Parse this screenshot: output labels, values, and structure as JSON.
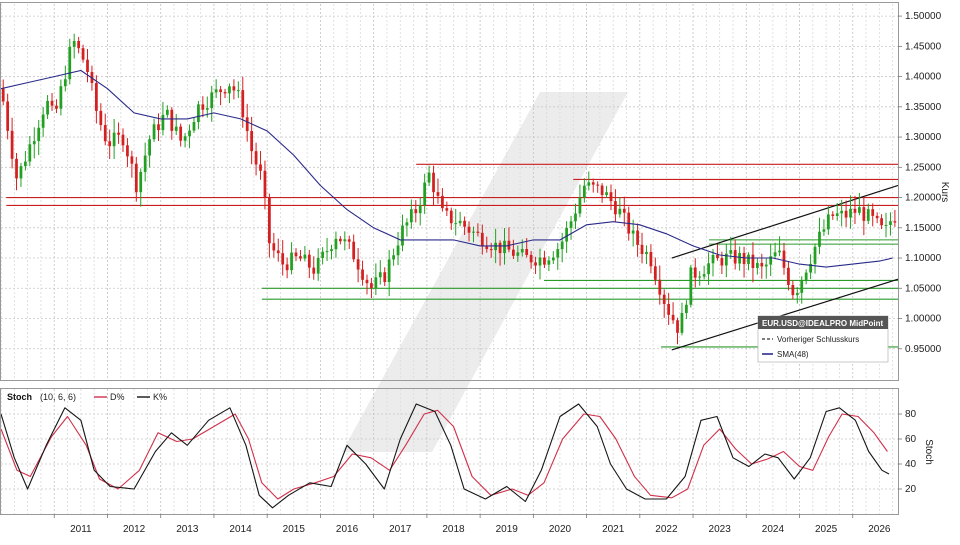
{
  "price_panel": {
    "y_axis_title": "Kurs",
    "legend": {
      "instrument": "EUR.USD@IDEALPRO MidPoint",
      "prev_close_label": "Vorheriger Schlusskurs",
      "sma_label": "SMA(48)"
    }
  },
  "stoch_panel": {
    "title": "Stoch",
    "params": "(10, 6, 6)",
    "d_label": "D%",
    "k_label": "K%",
    "y_axis_title": "Stoch"
  },
  "colors": {
    "bull": "#22a022",
    "bear": "#d42020",
    "sma": "#2a2a8a",
    "d_line": "#d0304a",
    "k_line": "#151515",
    "resistance": "#c81e1e",
    "support": "#2a9a2a",
    "channel": "#111111",
    "watermark": "#eaeaea"
  },
  "chart_data": [
    {
      "type": "candlestick",
      "interval": "monthly",
      "x_range": [
        2010.0,
        2026.85
      ],
      "ylim": [
        0.9,
        1.52
      ],
      "y_ticks": [
        "1.50000",
        "1.45000",
        "1.40000",
        "1.35000",
        "1.30000",
        "1.25000",
        "1.20000",
        "1.15000",
        "1.10000",
        "1.05000",
        "1.00000",
        "0.95000"
      ],
      "x_ticks": [
        "2011",
        "2012",
        "2013",
        "2014",
        "2015",
        "2016",
        "2017",
        "2018",
        "2019",
        "2020",
        "2021",
        "2022",
        "2023",
        "2024",
        "2025",
        "2026"
      ],
      "grid": true,
      "legend_position": "bottom-right",
      "close_anchors": [
        [
          2010.0,
          1.38
        ],
        [
          2010.3,
          1.23
        ],
        [
          2010.6,
          1.3
        ],
        [
          2010.85,
          1.36
        ],
        [
          2011.0,
          1.33
        ],
        [
          2011.35,
          1.46
        ],
        [
          2011.6,
          1.42
        ],
        [
          2011.8,
          1.34
        ],
        [
          2012.0,
          1.29
        ],
        [
          2012.3,
          1.3
        ],
        [
          2012.55,
          1.22
        ],
        [
          2012.8,
          1.3
        ],
        [
          2013.1,
          1.34
        ],
        [
          2013.4,
          1.29
        ],
        [
          2013.7,
          1.35
        ],
        [
          2014.0,
          1.37
        ],
        [
          2014.3,
          1.39
        ],
        [
          2014.5,
          1.36
        ],
        [
          2014.7,
          1.28
        ],
        [
          2014.9,
          1.23
        ],
        [
          2015.05,
          1.12
        ],
        [
          2015.3,
          1.09
        ],
        [
          2015.6,
          1.1
        ],
        [
          2015.9,
          1.08
        ],
        [
          2016.3,
          1.14
        ],
        [
          2016.6,
          1.11
        ],
        [
          2016.95,
          1.05
        ],
        [
          2017.2,
          1.07
        ],
        [
          2017.5,
          1.14
        ],
        [
          2017.8,
          1.18
        ],
        [
          2018.05,
          1.24
        ],
        [
          2018.3,
          1.17
        ],
        [
          2018.6,
          1.16
        ],
        [
          2018.9,
          1.14
        ],
        [
          2019.3,
          1.12
        ],
        [
          2019.6,
          1.11
        ],
        [
          2019.85,
          1.1
        ],
        [
          2020.2,
          1.1
        ],
        [
          2020.5,
          1.12
        ],
        [
          2020.75,
          1.17
        ],
        [
          2020.95,
          1.22
        ],
        [
          2021.3,
          1.21
        ],
        [
          2021.6,
          1.18
        ],
        [
          2021.9,
          1.13
        ],
        [
          2022.2,
          1.1
        ],
        [
          2022.5,
          1.02
        ],
        [
          2022.75,
          0.98
        ],
        [
          2022.95,
          1.07
        ],
        [
          2023.3,
          1.09
        ],
        [
          2023.6,
          1.1
        ],
        [
          2023.9,
          1.1
        ],
        [
          2024.3,
          1.08
        ],
        [
          2024.6,
          1.11
        ],
        [
          2024.9,
          1.04
        ],
        [
          2025.1,
          1.08
        ],
        [
          2025.35,
          1.13
        ],
        [
          2025.6,
          1.17
        ],
        [
          2025.85,
          1.17
        ],
        [
          2026.1,
          1.18
        ],
        [
          2026.4,
          1.16
        ],
        [
          2026.6,
          1.14
        ],
        [
          2026.75,
          1.17
        ]
      ],
      "sma_48": [
        [
          2010.0,
          1.38
        ],
        [
          2010.5,
          1.39
        ],
        [
          2011.0,
          1.4
        ],
        [
          2011.5,
          1.41
        ],
        [
          2012.0,
          1.38
        ],
        [
          2012.5,
          1.34
        ],
        [
          2013.0,
          1.33
        ],
        [
          2013.5,
          1.33
        ],
        [
          2014.0,
          1.34
        ],
        [
          2014.5,
          1.33
        ],
        [
          2015.0,
          1.31
        ],
        [
          2015.5,
          1.27
        ],
        [
          2016.0,
          1.22
        ],
        [
          2016.5,
          1.18
        ],
        [
          2017.0,
          1.15
        ],
        [
          2017.5,
          1.13
        ],
        [
          2018.0,
          1.13
        ],
        [
          2018.5,
          1.13
        ],
        [
          2019.0,
          1.12
        ],
        [
          2019.5,
          1.12
        ],
        [
          2020.0,
          1.13
        ],
        [
          2020.5,
          1.13
        ],
        [
          2021.0,
          1.155
        ],
        [
          2021.5,
          1.16
        ],
        [
          2022.0,
          1.155
        ],
        [
          2022.5,
          1.14
        ],
        [
          2023.0,
          1.12
        ],
        [
          2023.5,
          1.105
        ],
        [
          2024.0,
          1.1
        ],
        [
          2024.5,
          1.1
        ],
        [
          2025.0,
          1.09
        ],
        [
          2025.5,
          1.085
        ],
        [
          2026.0,
          1.09
        ],
        [
          2026.5,
          1.095
        ],
        [
          2026.75,
          1.1
        ]
      ],
      "horizontal_levels": [
        {
          "y": 1.255,
          "color": "resistance",
          "from": 2017.8
        },
        {
          "y": 1.23,
          "color": "resistance",
          "from": 2020.75
        },
        {
          "y": 1.2,
          "color": "resistance",
          "from": 2010.1
        },
        {
          "y": 1.187,
          "color": "resistance",
          "from": 2010.1
        },
        {
          "y": 1.13,
          "color": "support",
          "from": 2023.3
        },
        {
          "y": 1.123,
          "color": "support",
          "from": 2023.3
        },
        {
          "y": 1.063,
          "color": "support",
          "from": 2020.2
        },
        {
          "y": 1.05,
          "color": "support",
          "from": 2014.9
        },
        {
          "y": 1.032,
          "color": "support",
          "from": 2014.9
        },
        {
          "y": 0.953,
          "color": "support",
          "from": 2022.4
        }
      ],
      "trend_lines": [
        {
          "x1": 2022.6,
          "y1": 1.1,
          "x2": 2026.85,
          "y2": 1.22
        },
        {
          "x1": 2022.6,
          "y1": 0.948,
          "x2": 2026.85,
          "y2": 1.065
        }
      ]
    },
    {
      "type": "line",
      "title": "Stoch",
      "ylim": [
        0,
        100
      ],
      "y_ticks": [
        "80",
        "60",
        "40",
        "20"
      ],
      "series": [
        {
          "name": "D%",
          "color": "d_line",
          "points": [
            [
              2010.0,
              68
            ],
            [
              2010.3,
              35
            ],
            [
              2010.55,
              30
            ],
            [
              2010.95,
              62
            ],
            [
              2011.25,
              78
            ],
            [
              2011.6,
              55
            ],
            [
              2011.85,
              28
            ],
            [
              2012.2,
              20
            ],
            [
              2012.6,
              35
            ],
            [
              2012.95,
              65
            ],
            [
              2013.3,
              58
            ],
            [
              2013.6,
              60
            ],
            [
              2014.0,
              70
            ],
            [
              2014.4,
              80
            ],
            [
              2014.65,
              60
            ],
            [
              2014.9,
              25
            ],
            [
              2015.2,
              12
            ],
            [
              2015.5,
              20
            ],
            [
              2015.9,
              25
            ],
            [
              2016.25,
              30
            ],
            [
              2016.6,
              48
            ],
            [
              2016.95,
              45
            ],
            [
              2017.3,
              35
            ],
            [
              2017.6,
              55
            ],
            [
              2017.95,
              80
            ],
            [
              2018.2,
              83
            ],
            [
              2018.5,
              70
            ],
            [
              2018.85,
              30
            ],
            [
              2019.2,
              15
            ],
            [
              2019.6,
              20
            ],
            [
              2019.9,
              15
            ],
            [
              2020.2,
              25
            ],
            [
              2020.55,
              60
            ],
            [
              2020.95,
              80
            ],
            [
              2021.25,
              78
            ],
            [
              2021.55,
              60
            ],
            [
              2021.9,
              30
            ],
            [
              2022.2,
              15
            ],
            [
              2022.6,
              13
            ],
            [
              2022.9,
              20
            ],
            [
              2023.2,
              55
            ],
            [
              2023.5,
              68
            ],
            [
              2023.8,
              52
            ],
            [
              2024.1,
              40
            ],
            [
              2024.4,
              44
            ],
            [
              2024.7,
              50
            ],
            [
              2025.0,
              38
            ],
            [
              2025.25,
              35
            ],
            [
              2025.55,
              62
            ],
            [
              2025.8,
              80
            ],
            [
              2026.1,
              78
            ],
            [
              2026.4,
              65
            ],
            [
              2026.65,
              50
            ]
          ]
        },
        {
          "name": "K%",
          "color": "k_line",
          "points": [
            [
              2010.0,
              80
            ],
            [
              2010.25,
              45
            ],
            [
              2010.5,
              20
            ],
            [
              2010.85,
              55
            ],
            [
              2011.2,
              85
            ],
            [
              2011.5,
              75
            ],
            [
              2011.75,
              35
            ],
            [
              2012.05,
              22
            ],
            [
              2012.5,
              20
            ],
            [
              2012.9,
              50
            ],
            [
              2013.2,
              65
            ],
            [
              2013.5,
              55
            ],
            [
              2013.9,
              75
            ],
            [
              2014.3,
              85
            ],
            [
              2014.6,
              55
            ],
            [
              2014.85,
              15
            ],
            [
              2015.1,
              5
            ],
            [
              2015.4,
              15
            ],
            [
              2015.8,
              25
            ],
            [
              2016.2,
              22
            ],
            [
              2016.5,
              55
            ],
            [
              2016.85,
              40
            ],
            [
              2017.2,
              20
            ],
            [
              2017.5,
              60
            ],
            [
              2017.8,
              88
            ],
            [
              2018.15,
              82
            ],
            [
              2018.45,
              55
            ],
            [
              2018.7,
              20
            ],
            [
              2019.1,
              12
            ],
            [
              2019.5,
              22
            ],
            [
              2019.85,
              10
            ],
            [
              2020.15,
              35
            ],
            [
              2020.5,
              78
            ],
            [
              2020.85,
              88
            ],
            [
              2021.2,
              70
            ],
            [
              2021.45,
              40
            ],
            [
              2021.75,
              20
            ],
            [
              2022.1,
              12
            ],
            [
              2022.5,
              12
            ],
            [
              2022.85,
              30
            ],
            [
              2023.15,
              75
            ],
            [
              2023.45,
              78
            ],
            [
              2023.75,
              45
            ],
            [
              2024.05,
              38
            ],
            [
              2024.35,
              48
            ],
            [
              2024.6,
              45
            ],
            [
              2024.9,
              28
            ],
            [
              2025.2,
              45
            ],
            [
              2025.5,
              82
            ],
            [
              2025.75,
              85
            ],
            [
              2026.05,
              75
            ],
            [
              2026.3,
              50
            ],
            [
              2026.55,
              35
            ],
            [
              2026.68,
              32
            ]
          ]
        }
      ]
    }
  ]
}
